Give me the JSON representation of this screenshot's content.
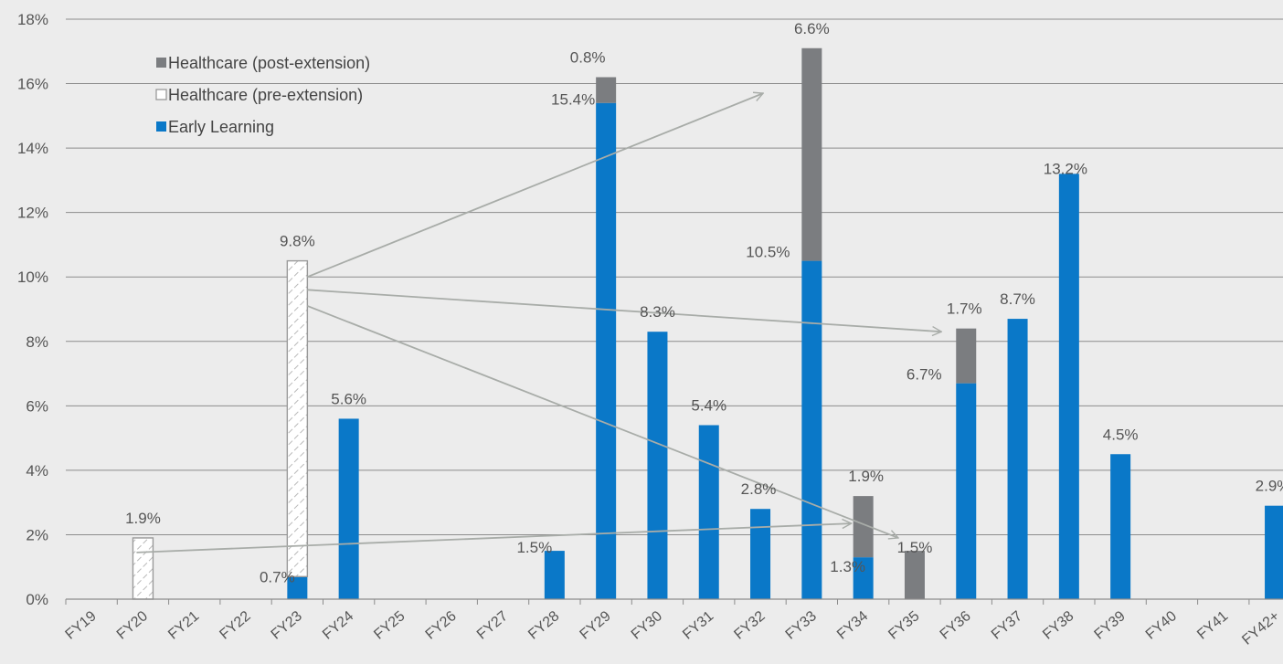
{
  "chart_data": {
    "type": "bar",
    "stacked": true,
    "categories": [
      "FY19",
      "FY20",
      "FY21",
      "FY22",
      "FY23",
      "FY24",
      "FY25",
      "FY26",
      "FY27",
      "FY28",
      "FY29",
      "FY30",
      "FY31",
      "FY32",
      "FY33",
      "FY34",
      "FY35",
      "FY36",
      "FY37",
      "FY38",
      "FY39",
      "FY40",
      "FY41",
      "FY42+"
    ],
    "series": [
      {
        "name": "Early Learning",
        "color": "#0a78c8",
        "values": [
          0,
          0,
          0,
          0,
          0.7,
          5.6,
          0,
          0,
          0,
          1.5,
          15.4,
          8.3,
          5.4,
          2.8,
          10.5,
          1.3,
          0,
          6.7,
          8.7,
          13.2,
          4.5,
          0,
          0,
          2.9
        ]
      },
      {
        "name": "Healthcare (pre-extension)",
        "color": "#ffffff",
        "values": [
          0,
          1.9,
          0,
          0,
          9.8,
          0,
          0,
          0,
          0,
          0,
          0,
          0,
          0,
          0,
          0,
          0,
          0,
          0,
          0,
          0,
          0,
          0,
          0,
          0
        ]
      },
      {
        "name": "Healthcare (post-extension)",
        "color": "#7b7d80",
        "values": [
          0,
          0,
          0,
          0,
          0,
          0,
          0,
          0,
          0,
          0,
          0.8,
          0,
          0,
          0,
          6.6,
          1.9,
          1.5,
          1.7,
          0,
          0,
          0,
          0,
          0,
          0
        ]
      }
    ],
    "ylim": [
      0,
      18
    ],
    "yticks": [
      "0%",
      "2%",
      "4%",
      "6%",
      "8%",
      "10%",
      "12%",
      "14%",
      "16%",
      "18%"
    ],
    "grid": true,
    "legend_position": "top-left",
    "data_labels": [
      {
        "category": "FY20",
        "text": "1.9%"
      },
      {
        "category": "FY23",
        "text": "9.8%"
      },
      {
        "category": "FY23",
        "text": "0.7%"
      },
      {
        "category": "FY24",
        "text": "5.6%"
      },
      {
        "category": "FY28",
        "text": "1.5%"
      },
      {
        "category": "FY29",
        "text": "0.8%"
      },
      {
        "category": "FY29",
        "text": "15.4%"
      },
      {
        "category": "FY30",
        "text": "8.3%"
      },
      {
        "category": "FY31",
        "text": "5.4%"
      },
      {
        "category": "FY32",
        "text": "2.8%"
      },
      {
        "category": "FY33",
        "text": "6.6%"
      },
      {
        "category": "FY33",
        "text": "10.5%"
      },
      {
        "category": "FY34",
        "text": "1.9%"
      },
      {
        "category": "FY34",
        "text": "1.3%"
      },
      {
        "category": "FY35",
        "text": "1.5%"
      },
      {
        "category": "FY36",
        "text": "1.7%"
      },
      {
        "category": "FY36",
        "text": "6.7%"
      },
      {
        "category": "FY37",
        "text": "8.7%"
      },
      {
        "category": "FY38",
        "text": "13.2%"
      },
      {
        "category": "FY39",
        "text": "4.5%"
      },
      {
        "category": "FY42+",
        "text": "2.9%"
      }
    ],
    "annotations": [
      {
        "type": "arrow",
        "from": "FY20",
        "to": "FY34",
        "value": 1.9
      },
      {
        "type": "arrow",
        "from": "FY23",
        "to": "FY29",
        "value": 0.8
      },
      {
        "type": "arrow",
        "from": "FY23",
        "to": "FY33",
        "value": 6.6
      },
      {
        "type": "arrow",
        "from": "FY23",
        "to": "FY36",
        "value": 1.7
      },
      {
        "type": "arrow",
        "from": "FY23",
        "to": "FY35",
        "value": 1.5
      }
    ]
  }
}
